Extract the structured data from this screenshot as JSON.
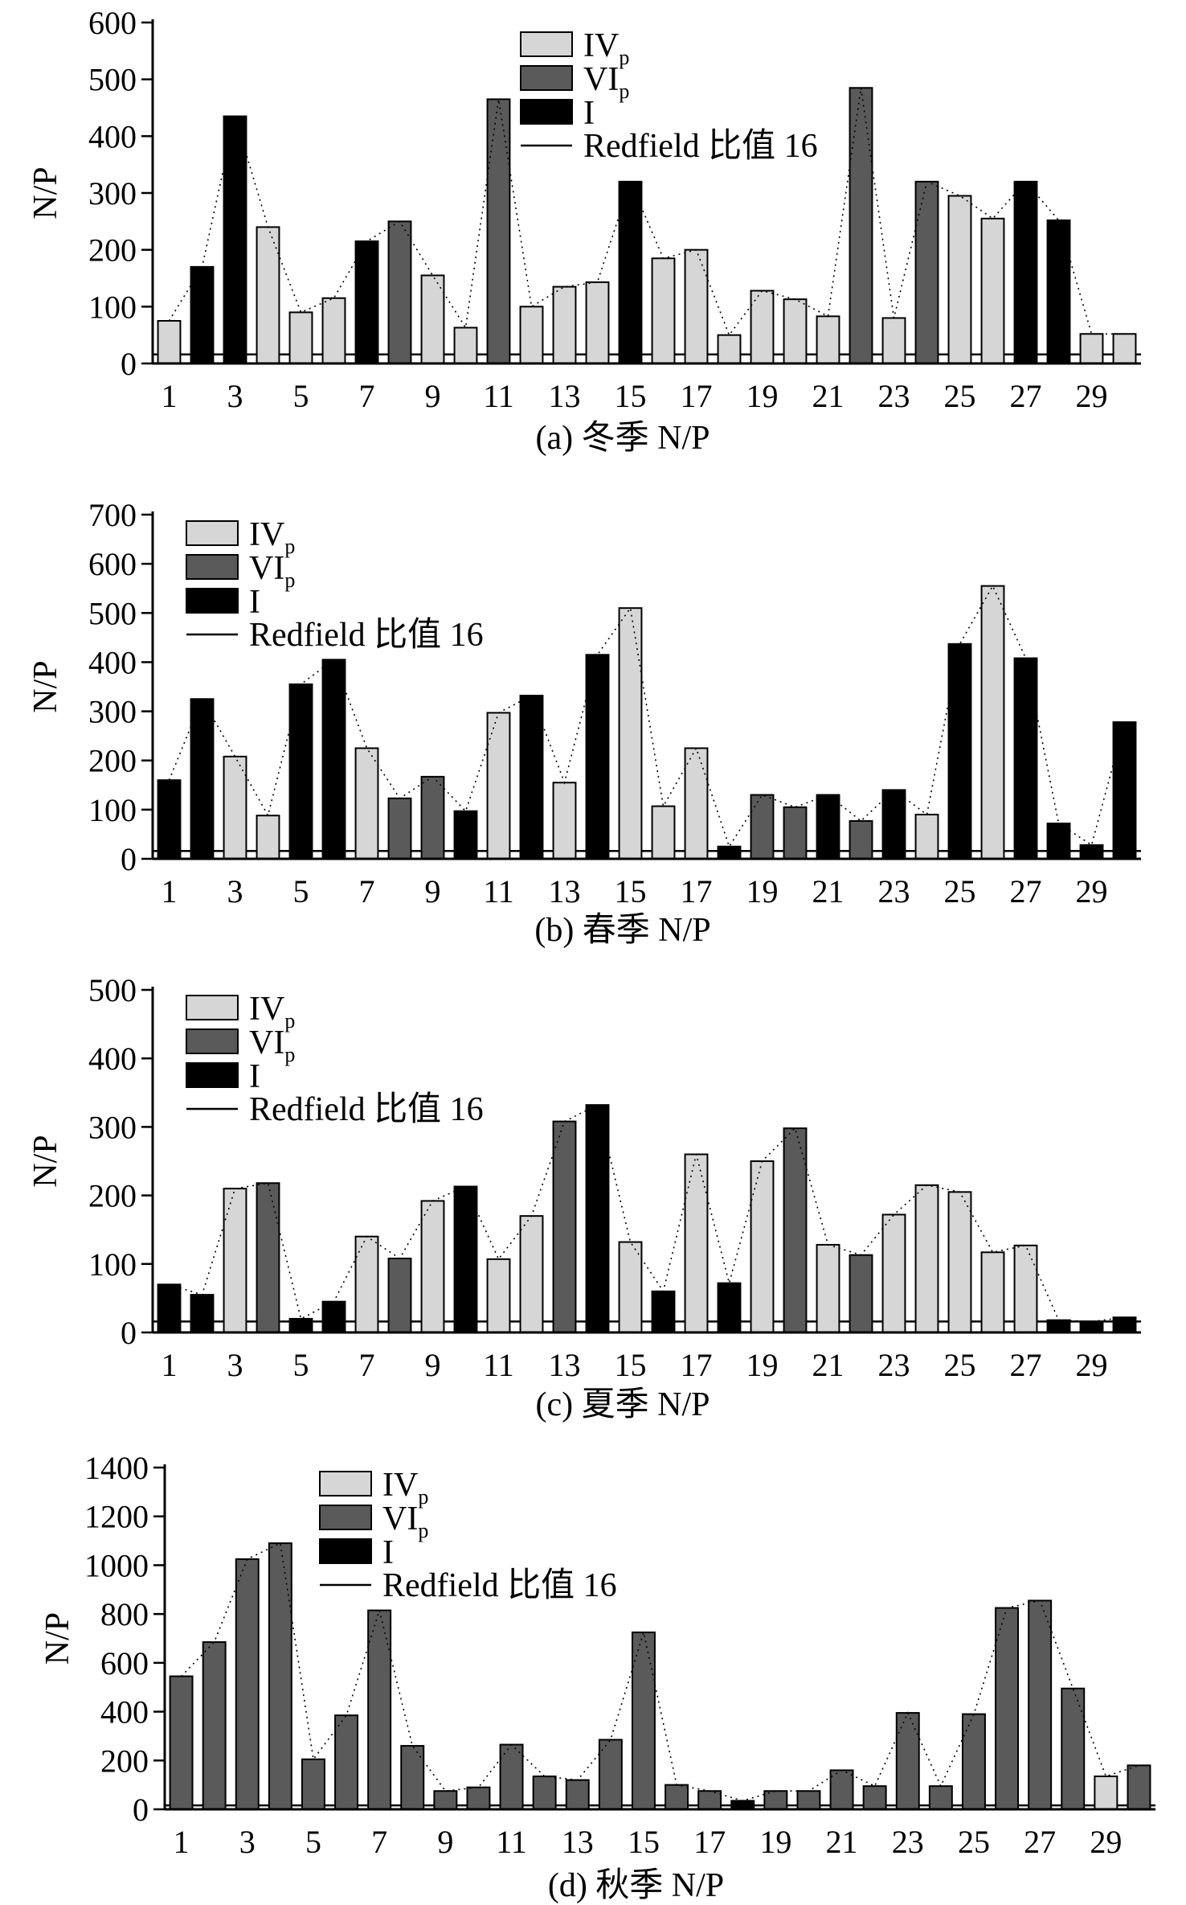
{
  "colors": {
    "IV": "#d6d6d6",
    "VI": "#5a5a5a",
    "I": "#000000"
  },
  "legend": {
    "iv_main": "IV",
    "iv_sub": "p",
    "vi_main": "VI",
    "vi_sub": "p",
    "i_main": "I",
    "redfield": "Redfield 比值 16"
  },
  "chart_data": [
    {
      "type": "bar",
      "caption": "(a) 冬季 N/P",
      "ylabel": "N/P",
      "ylim": [
        0,
        600
      ],
      "yticks": [
        0,
        100,
        200,
        300,
        400,
        500,
        600
      ],
      "xticks": [
        1,
        3,
        5,
        7,
        9,
        11,
        13,
        15,
        17,
        19,
        21,
        23,
        25,
        27,
        29
      ],
      "redfield": 16,
      "legend_position": "top-center",
      "x": [
        1,
        2,
        3,
        4,
        5,
        6,
        7,
        8,
        9,
        10,
        11,
        12,
        13,
        14,
        15,
        16,
        17,
        18,
        19,
        20,
        21,
        22,
        23,
        24,
        25,
        26,
        27,
        28,
        29,
        30
      ],
      "values": [
        75,
        170,
        435,
        240,
        90,
        115,
        215,
        250,
        155,
        63,
        465,
        100,
        135,
        143,
        320,
        185,
        200,
        50,
        128,
        113,
        83,
        485,
        80,
        320,
        295,
        255,
        320,
        252,
        52,
        52
      ],
      "groups": [
        "IV",
        "I",
        "I",
        "IV",
        "IV",
        "IV",
        "I",
        "VI",
        "IV",
        "IV",
        "VI",
        "IV",
        "IV",
        "IV",
        "I",
        "IV",
        "IV",
        "IV",
        "IV",
        "IV",
        "IV",
        "VI",
        "IV",
        "VI",
        "IV",
        "IV",
        "I",
        "I",
        "IV",
        "IV"
      ]
    },
    {
      "type": "bar",
      "caption": "(b) 春季 N/P",
      "ylabel": "N/P",
      "ylim": [
        0,
        700
      ],
      "yticks": [
        0,
        100,
        200,
        300,
        400,
        500,
        600,
        700
      ],
      "xticks": [
        1,
        3,
        5,
        7,
        9,
        11,
        13,
        15,
        17,
        19,
        21,
        23,
        25,
        27,
        29
      ],
      "redfield": 16,
      "legend_position": "top-left",
      "x": [
        1,
        2,
        3,
        4,
        5,
        6,
        7,
        8,
        9,
        10,
        11,
        12,
        13,
        14,
        15,
        16,
        17,
        18,
        19,
        20,
        21,
        22,
        23,
        24,
        25,
        26,
        27,
        28,
        29,
        30
      ],
      "values": [
        160,
        325,
        208,
        88,
        355,
        405,
        225,
        123,
        167,
        97,
        297,
        332,
        155,
        415,
        510,
        107,
        225,
        25,
        130,
        105,
        130,
        77,
        140,
        90,
        437,
        555,
        408,
        72,
        28,
        278
      ],
      "groups": [
        "I",
        "I",
        "IV",
        "IV",
        "I",
        "I",
        "IV",
        "VI",
        "VI",
        "I",
        "IV",
        "I",
        "IV",
        "I",
        "IV",
        "IV",
        "IV",
        "I",
        "VI",
        "VI",
        "I",
        "VI",
        "I",
        "IV",
        "I",
        "IV",
        "I",
        "I",
        "I",
        "I"
      ]
    },
    {
      "type": "bar",
      "caption": "(c) 夏季 N/P",
      "ylabel": "N/P",
      "ylim": [
        0,
        500
      ],
      "yticks": [
        0,
        100,
        200,
        300,
        400,
        500
      ],
      "xticks": [
        1,
        3,
        5,
        7,
        9,
        11,
        13,
        15,
        17,
        19,
        21,
        23,
        25,
        27,
        29
      ],
      "redfield": 16,
      "legend_position": "top-left",
      "x": [
        1,
        2,
        3,
        4,
        5,
        6,
        7,
        8,
        9,
        10,
        11,
        12,
        13,
        14,
        15,
        16,
        17,
        18,
        19,
        20,
        21,
        22,
        23,
        24,
        25,
        26,
        27,
        28,
        29,
        30
      ],
      "values": [
        70,
        55,
        210,
        218,
        20,
        45,
        140,
        108,
        192,
        213,
        107,
        170,
        308,
        332,
        132,
        60,
        260,
        72,
        250,
        298,
        128,
        113,
        172,
        215,
        205,
        117,
        127,
        18,
        16,
        22
      ],
      "groups": [
        "I",
        "I",
        "IV",
        "VI",
        "I",
        "I",
        "IV",
        "VI",
        "IV",
        "I",
        "IV",
        "IV",
        "VI",
        "I",
        "IV",
        "I",
        "IV",
        "I",
        "IV",
        "VI",
        "IV",
        "VI",
        "IV",
        "IV",
        "IV",
        "IV",
        "IV",
        "I",
        "I",
        "I"
      ]
    },
    {
      "type": "bar",
      "caption": "(d) 秋季 N/P",
      "ylabel": "N/P",
      "ylim": [
        0,
        1400
      ],
      "yticks": [
        0,
        200,
        400,
        600,
        800,
        1000,
        1200,
        1400
      ],
      "xticks": [
        1,
        3,
        5,
        7,
        9,
        11,
        13,
        15,
        17,
        19,
        21,
        23,
        25,
        27,
        29
      ],
      "redfield": 16,
      "legend_position": "top-center",
      "x": [
        1,
        2,
        3,
        4,
        5,
        6,
        7,
        8,
        9,
        10,
        11,
        12,
        13,
        14,
        15,
        16,
        17,
        18,
        19,
        20,
        21,
        22,
        23,
        24,
        25,
        26,
        27,
        28,
        29,
        30
      ],
      "values": [
        545,
        685,
        1025,
        1090,
        205,
        385,
        815,
        260,
        75,
        90,
        265,
        135,
        120,
        285,
        725,
        100,
        75,
        35,
        75,
        75,
        160,
        95,
        395,
        95,
        390,
        825,
        855,
        495,
        135,
        180
      ],
      "groups": [
        "VI",
        "VI",
        "VI",
        "VI",
        "VI",
        "VI",
        "VI",
        "VI",
        "VI",
        "VI",
        "VI",
        "VI",
        "VI",
        "VI",
        "VI",
        "VI",
        "VI",
        "I",
        "VI",
        "VI",
        "VI",
        "VI",
        "VI",
        "VI",
        "VI",
        "VI",
        "VI",
        "VI",
        "IV",
        "VI"
      ]
    }
  ]
}
